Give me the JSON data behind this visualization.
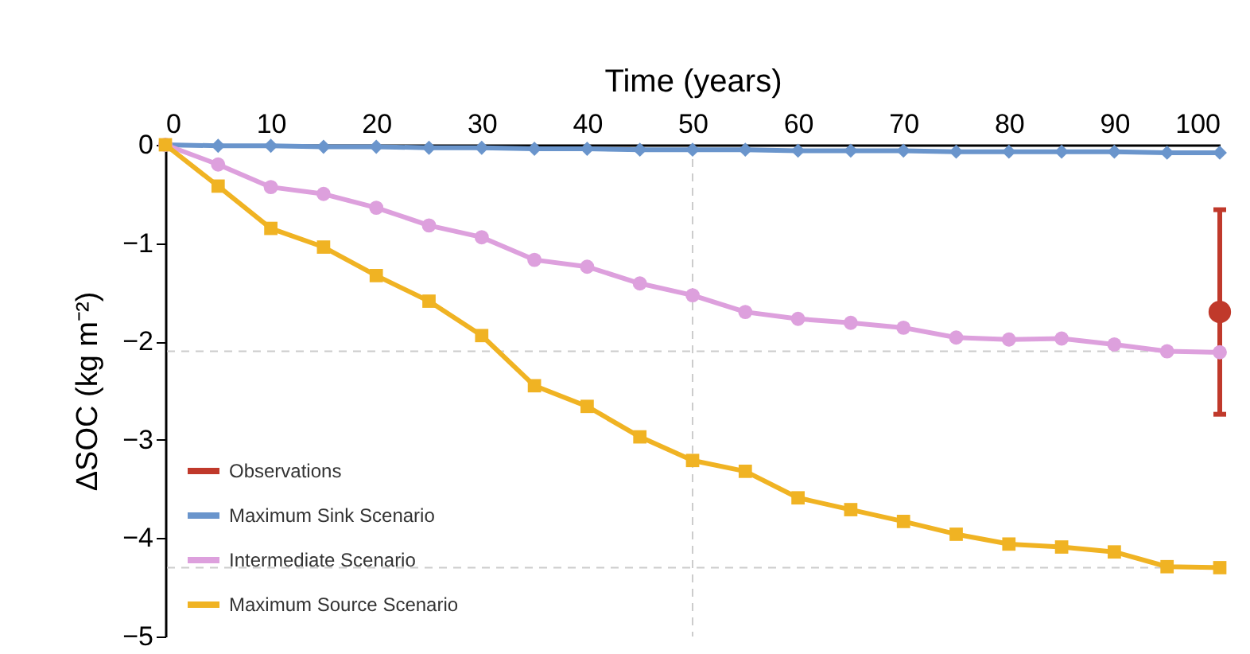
{
  "chart_data": {
    "type": "line",
    "xlabel": "Time (years)",
    "ylabel": "ΔSOC (kg m⁻²)",
    "xlim": [
      0,
      100
    ],
    "xticks": [
      0,
      10,
      20,
      30,
      40,
      50,
      60,
      70,
      80,
      90,
      100
    ],
    "ylim": [
      -5,
      0
    ],
    "yticks": [
      -5,
      -4,
      -3,
      -2,
      -1,
      0
    ],
    "grid": false,
    "legend": "bottom left",
    "ref_lines": [
      {
        "axis": "x",
        "value": 50,
        "color": "#cccccc",
        "line_style": "dashed"
      },
      {
        "axis": "y",
        "value": -2.1,
        "color": "#cccccc",
        "line_style": "dashed"
      },
      {
        "axis": "y",
        "value": -4.3,
        "color": "#cccccc",
        "line_style": "dashed"
      }
    ],
    "series": [
      {
        "name": "Observations",
        "type": "scatter",
        "color": "#c0392b",
        "marker": "circle",
        "x": [
          100
        ],
        "values": [
          -1.7
        ],
        "errors": [
          1.04
        ]
      },
      {
        "name": "Maximum Sink Scenario",
        "color": "#6a95cc",
        "marker": "diamond",
        "x": [
          0,
          5,
          10,
          15,
          20,
          25,
          30,
          35,
          40,
          45,
          50,
          55,
          60,
          65,
          70,
          75,
          80,
          85,
          90,
          95,
          100
        ],
        "values": [
          0,
          -0.01,
          -0.01,
          -0.02,
          -0.02,
          -0.03,
          -0.03,
          -0.04,
          -0.04,
          -0.05,
          -0.05,
          -0.05,
          -0.06,
          -0.06,
          -0.06,
          -0.07,
          -0.07,
          -0.07,
          -0.07,
          -0.08,
          -0.08
        ]
      },
      {
        "name": "Intermediate Scenario",
        "color": "#dda0dd",
        "marker": "circle",
        "x": [
          0,
          5,
          10,
          15,
          20,
          25,
          30,
          35,
          40,
          45,
          50,
          55,
          60,
          65,
          70,
          75,
          80,
          85,
          90,
          95,
          100
        ],
        "values": [
          0,
          -0.2,
          -0.43,
          -0.5,
          -0.64,
          -0.82,
          -0.94,
          -1.17,
          -1.24,
          -1.41,
          -1.53,
          -1.7,
          -1.77,
          -1.81,
          -1.86,
          -1.96,
          -1.98,
          -1.97,
          -2.03,
          -2.1,
          -2.11
        ]
      },
      {
        "name": "Maximum Source Scenario",
        "color": "#f0b323",
        "marker": "square",
        "x": [
          0,
          5,
          10,
          15,
          20,
          25,
          30,
          35,
          40,
          45,
          50,
          55,
          60,
          65,
          70,
          75,
          80,
          85,
          90,
          95,
          100
        ],
        "values": [
          0,
          -0.42,
          -0.85,
          -1.04,
          -1.33,
          -1.59,
          -1.94,
          -2.45,
          -2.66,
          -2.97,
          -3.21,
          -3.32,
          -3.59,
          -3.71,
          -3.83,
          -3.96,
          -4.06,
          -4.09,
          -4.14,
          -4.29,
          -4.3
        ]
      }
    ]
  }
}
